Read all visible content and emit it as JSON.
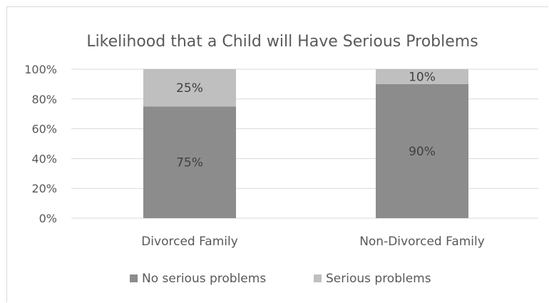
{
  "chart_data": {
    "type": "bar",
    "stacked": true,
    "percent_stacked": true,
    "title": "Likelihood that a Child will Have Serious Problems",
    "categories": [
      "Divorced Family",
      "Non-Divorced Family"
    ],
    "series": [
      {
        "name": "No serious problems",
        "values": [
          75,
          90
        ],
        "color": "#8c8c8c"
      },
      {
        "name": "Serious problems",
        "values": [
          25,
          10
        ],
        "color": "#bfbfbf"
      }
    ],
    "data_labels": [
      [
        "75%",
        "90%"
      ],
      [
        "25%",
        "10%"
      ]
    ],
    "yticks": [
      "0%",
      "20%",
      "40%",
      "60%",
      "80%",
      "100%"
    ],
    "ylim": [
      0,
      100
    ],
    "grid": true,
    "legend": "bottom",
    "colors": {
      "gridline": "#d9d9d9",
      "text": "#595959",
      "label": "#404040"
    }
  }
}
